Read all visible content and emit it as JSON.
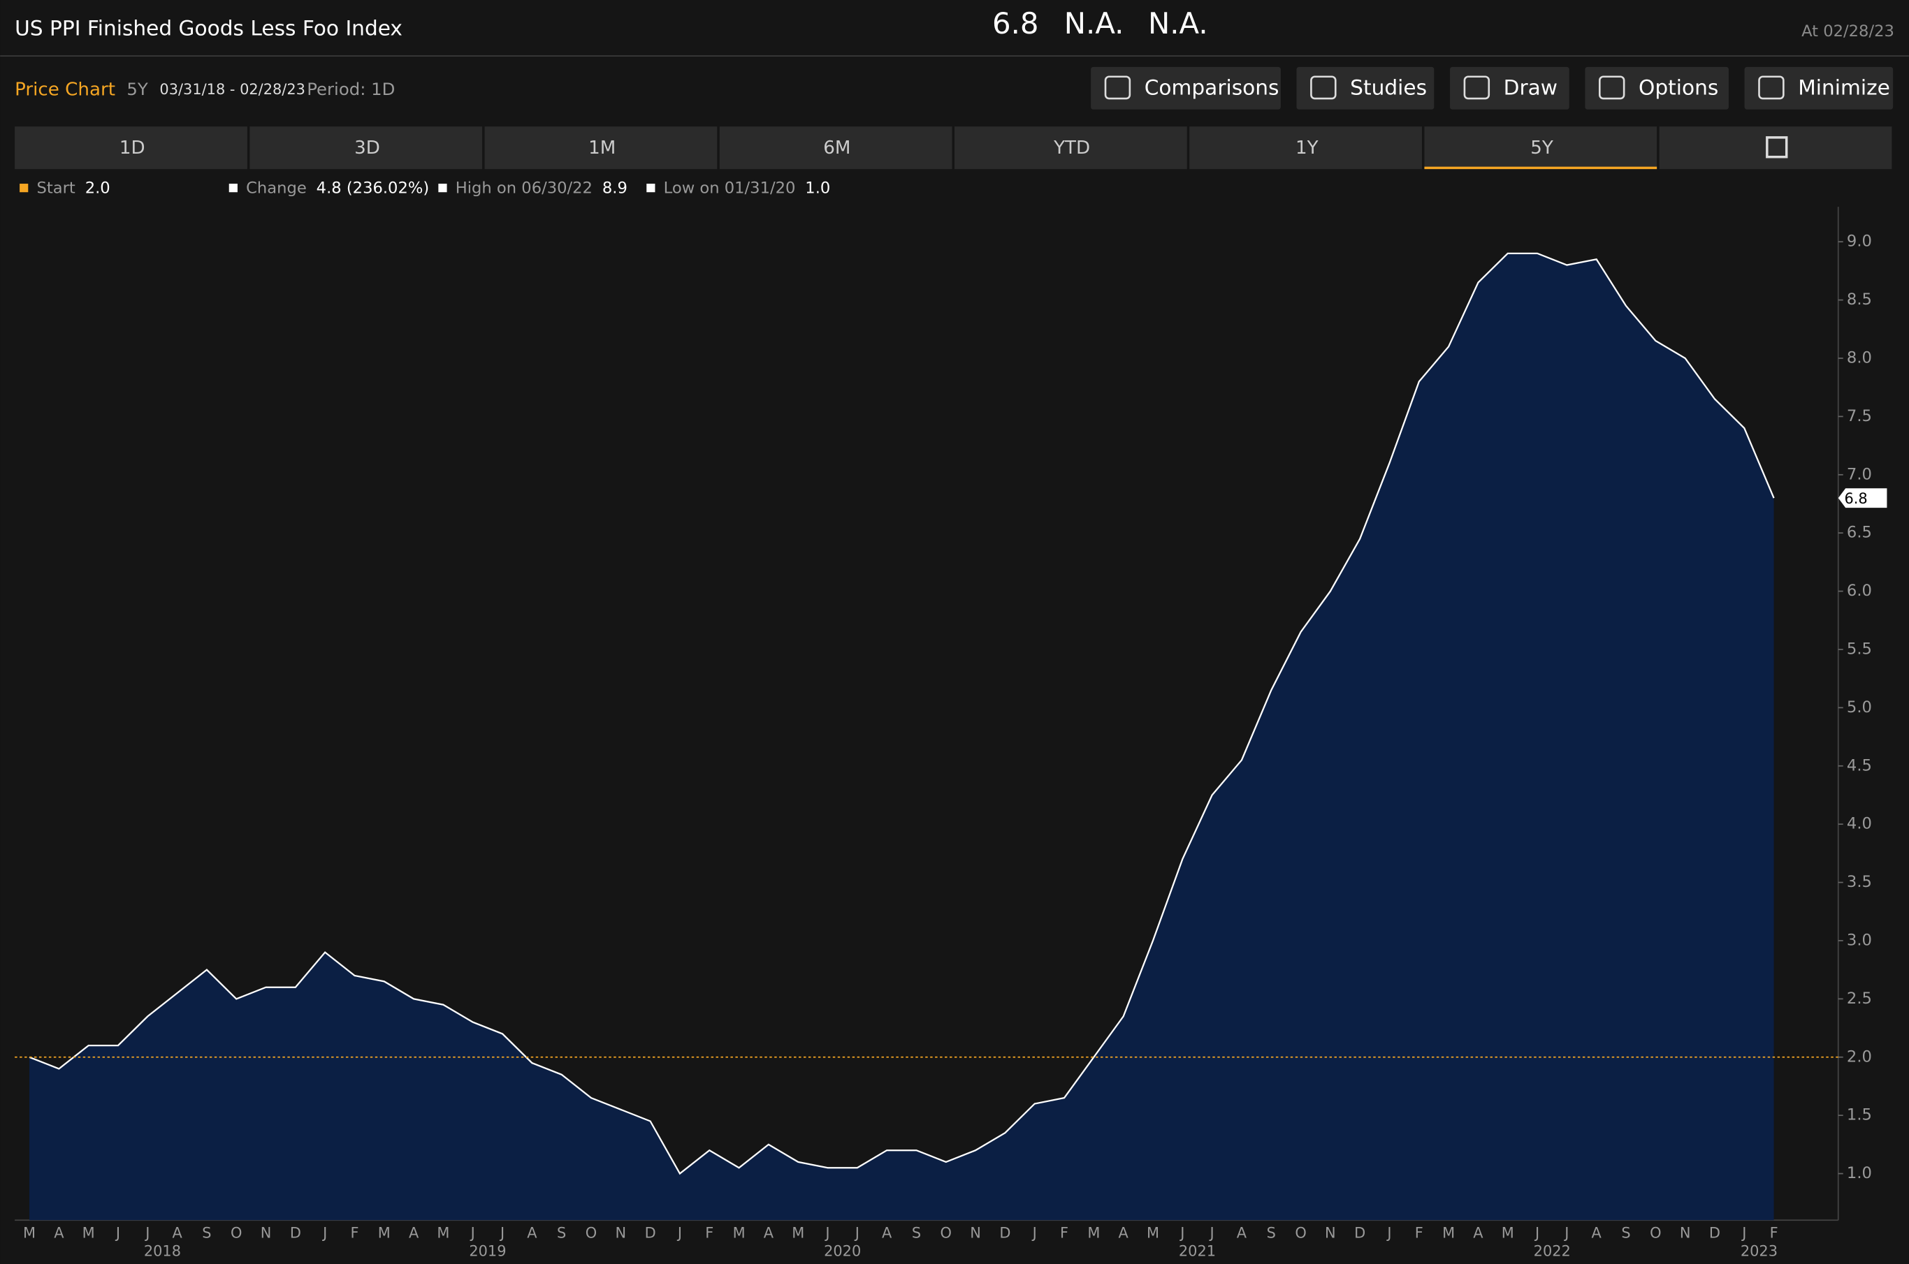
{
  "header": {
    "title": "US PPI Finished Goods Less Foo Index",
    "price": "6.8",
    "change": "N.A.",
    "change_pct": "N.A.",
    "as_of": "At 02/28/23"
  },
  "toolbar": {
    "label": "Price Chart",
    "range": "5Y",
    "dates": "03/31/18 - 02/28/23",
    "period": "Period: 1D",
    "buttons": [
      "Comparisons",
      "Studies",
      "Draw",
      "Options",
      "Minimize"
    ]
  },
  "tabs": {
    "items": [
      "1D",
      "3D",
      "1M",
      "6M",
      "YTD",
      "1Y",
      "5Y"
    ],
    "active_index": 6
  },
  "legend": [
    {
      "label": "Start",
      "value": "2.0",
      "color": "#f5a623"
    },
    {
      "label": "Change",
      "value": "4.8 (236.02%)",
      "color": "#ffffff"
    },
    {
      "label": "High on 06/30/22",
      "value": "8.9",
      "color": "#ffffff"
    },
    {
      "label": "Low on 01/31/20",
      "value": "1.0",
      "color": "#ffffff"
    }
  ],
  "chart_data": {
    "type": "area",
    "categories": [
      "M",
      "A",
      "M",
      "J",
      "J",
      "A",
      "S",
      "O",
      "N",
      "D",
      "J",
      "F",
      "M",
      "A",
      "M",
      "J",
      "J",
      "A",
      "S",
      "O",
      "N",
      "D",
      "J",
      "F",
      "M",
      "A",
      "M",
      "J",
      "J",
      "A",
      "S",
      "O",
      "N",
      "D",
      "J",
      "F",
      "M",
      "A",
      "M",
      "J",
      "J",
      "A",
      "S",
      "O",
      "N",
      "D",
      "J",
      "F",
      "M",
      "A",
      "M",
      "J",
      "J",
      "A",
      "S",
      "O",
      "N",
      "D",
      "J",
      "F"
    ],
    "years": [
      "2018",
      "2019",
      "2020",
      "2021",
      "2022",
      "2023"
    ],
    "values": [
      2.0,
      1.9,
      2.1,
      2.1,
      2.35,
      2.55,
      2.75,
      2.5,
      2.6,
      2.6,
      2.9,
      2.7,
      2.65,
      2.5,
      2.45,
      2.3,
      2.2,
      1.95,
      1.85,
      1.65,
      1.55,
      1.45,
      1.0,
      1.2,
      1.05,
      1.25,
      1.1,
      1.05,
      1.05,
      1.2,
      1.2,
      1.1,
      1.2,
      1.35,
      1.6,
      1.65,
      2.0,
      2.35,
      3.0,
      3.7,
      4.25,
      4.55,
      5.15,
      5.65,
      6.0,
      6.45,
      7.1,
      7.8,
      8.1,
      8.65,
      8.9,
      8.9,
      8.8,
      8.85,
      8.45,
      8.15,
      8.0,
      7.65,
      7.4,
      6.8
    ],
    "color": "#0b1f44",
    "line_color": "#ffffff",
    "start": {
      "value": 2,
      "label": "2.0"
    },
    "ylim": [
      0.6,
      9.3
    ],
    "yticks": [
      {
        "value": 1,
        "label": "1.0"
      },
      1.5,
      {
        "value": 2,
        "label": "2.0"
      },
      2.5,
      {
        "value": 3,
        "label": "3.0"
      },
      3.5,
      {
        "value": 4,
        "label": "4.0"
      },
      4.5,
      {
        "value": 5,
        "label": "5.0"
      },
      5.5,
      {
        "value": 6,
        "label": "6.0"
      },
      6.5,
      {
        "value": 7,
        "label": "7.0"
      },
      7.5,
      {
        "value": 8,
        "label": "8.0"
      },
      8.5,
      {
        "value": 9,
        "label": "9.0"
      }
    ]
  }
}
